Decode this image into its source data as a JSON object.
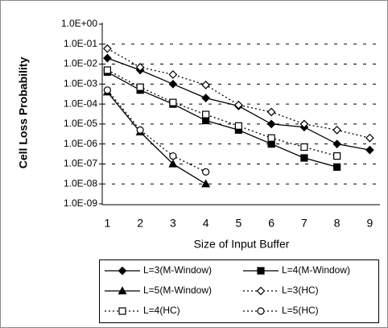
{
  "chart_data": {
    "type": "line",
    "x_label": "Size of Input Buffer",
    "y_label": "Cell Loss Probability",
    "categories": [
      "1",
      "2",
      "3",
      "4",
      "5",
      "6",
      "7",
      "8",
      "9"
    ],
    "ylog": true,
    "grid": true,
    "ylim": [
      1e-09,
      1
    ],
    "yticks": [
      {
        "value": 1,
        "label": "1.0E+00"
      },
      {
        "value": 0.1,
        "label": "1.0E-01"
      },
      {
        "value": 0.01,
        "label": "1.0E-02"
      },
      {
        "value": 0.001,
        "label": "1.0E-03"
      },
      {
        "value": 0.0001,
        "label": "1.0E-04"
      },
      {
        "value": 1e-05,
        "label": "1.0E-05"
      },
      {
        "value": 1e-06,
        "label": "1.0E-06"
      },
      {
        "value": 1e-07,
        "label": "1.0E-07"
      },
      {
        "value": 1e-08,
        "label": "1.0E-08"
      },
      {
        "value": 1e-09,
        "label": "1.0E-09"
      }
    ],
    "series": [
      {
        "name": "L=3(M-Window)",
        "color": "#000000",
        "marker": "diamond",
        "filled": true,
        "dashed": false,
        "values": [
          0.02,
          0.005,
          0.001,
          0.0002,
          8e-05,
          1e-05,
          7e-06,
          1e-06,
          5e-07
        ]
      },
      {
        "name": "L=4(M-Window)",
        "color": "#000000",
        "marker": "square",
        "filled": true,
        "dashed": false,
        "values": [
          0.004,
          0.0005,
          0.0001,
          1.5e-05,
          5e-06,
          1e-06,
          2e-07,
          7e-08,
          null
        ]
      },
      {
        "name": "L=5(M-Window)",
        "color": "#000000",
        "marker": "triangle",
        "filled": true,
        "dashed": false,
        "values": [
          0.0004,
          4e-06,
          1e-07,
          1e-08,
          null,
          null,
          null,
          null,
          null
        ]
      },
      {
        "name": "L=3(HC)",
        "color": "#000000",
        "marker": "diamond",
        "filled": false,
        "dashed": true,
        "values": [
          0.06,
          0.007,
          0.003,
          0.0009,
          9e-05,
          4e-05,
          1e-05,
          5e-06,
          2e-06
        ]
      },
      {
        "name": "L=4(HC)",
        "color": "#000000",
        "marker": "square",
        "filled": false,
        "dashed": true,
        "values": [
          0.005,
          0.0007,
          0.00012,
          3e-05,
          8e-06,
          2e-06,
          7e-07,
          2.5e-07,
          null
        ]
      },
      {
        "name": "L=5(HC)",
        "color": "#000000",
        "marker": "circle",
        "filled": false,
        "dashed": true,
        "values": [
          0.0005,
          5e-06,
          2.5e-07,
          4e-08,
          null,
          null,
          null,
          null,
          null
        ]
      }
    ]
  }
}
